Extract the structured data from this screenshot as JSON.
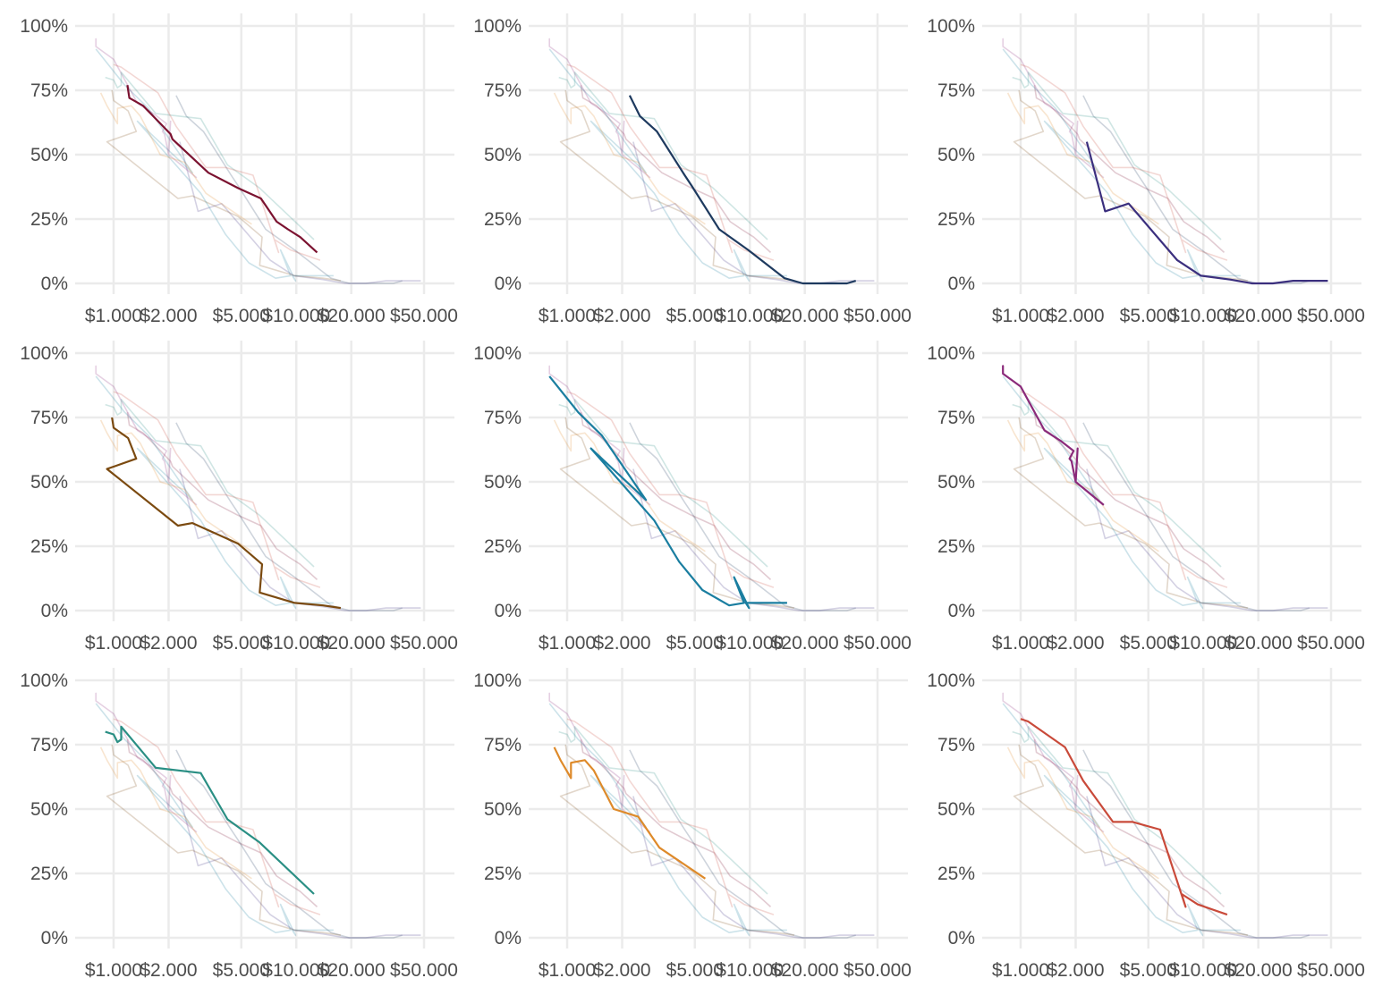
{
  "chart_data": {
    "type": "line",
    "layout": "small-multiples",
    "rows": 3,
    "cols": 3,
    "x_scale": "log",
    "xlim": [
      750,
      60000
    ],
    "ylim": [
      0,
      1
    ],
    "grid": true,
    "legend": "none",
    "x_ticks": [
      {
        "value": 1000,
        "label": "$1.000"
      },
      {
        "value": 2000,
        "label": "$2.000"
      },
      {
        "value": 5000,
        "label": "$5.000"
      },
      {
        "value": 10000,
        "label": "$10.000"
      },
      {
        "value": 20000,
        "label": "$20.000"
      },
      {
        "value": 50000,
        "label": "$50.000"
      }
    ],
    "y_ticks": [
      {
        "value": 0,
        "label": "0%"
      },
      {
        "value": 0.25,
        "label": "25%"
      },
      {
        "value": 0.5,
        "label": "50%"
      },
      {
        "value": 0.75,
        "label": "75%"
      },
      {
        "value": 1,
        "label": "100%"
      }
    ],
    "background_series_opacity": 0.22,
    "series": [
      {
        "color": "#7b1230",
        "points": [
          [
            1190,
            0.77
          ],
          [
            1220,
            0.72
          ],
          [
            1450,
            0.69
          ],
          [
            2050,
            0.58
          ],
          [
            2100,
            0.56
          ],
          [
            3300,
            0.43
          ],
          [
            4800,
            0.37
          ],
          [
            6400,
            0.33
          ],
          [
            7800,
            0.24
          ],
          [
            9000,
            0.21
          ],
          [
            10500,
            0.18
          ],
          [
            13000,
            0.12
          ]
        ]
      },
      {
        "color": "#1e3a5f",
        "points": [
          [
            2200,
            0.73
          ],
          [
            2500,
            0.65
          ],
          [
            3100,
            0.59
          ],
          [
            4400,
            0.42
          ],
          [
            4800,
            0.38
          ],
          [
            6800,
            0.21
          ],
          [
            9800,
            0.13
          ],
          [
            15500,
            0.02
          ],
          [
            19500,
            0.0
          ],
          [
            34000,
            0.0
          ],
          [
            38000,
            0.01
          ]
        ]
      },
      {
        "color": "#3b2f7e",
        "points": [
          [
            2300,
            0.55
          ],
          [
            2900,
            0.28
          ],
          [
            3900,
            0.31
          ],
          [
            7200,
            0.09
          ],
          [
            9700,
            0.03
          ],
          [
            14000,
            0.015
          ],
          [
            18500,
            0.0
          ],
          [
            24000,
            0.0
          ],
          [
            31000,
            0.01
          ],
          [
            48000,
            0.01
          ]
        ]
      },
      {
        "color": "#7b4a10",
        "points": [
          [
            980,
            0.75
          ],
          [
            1000,
            0.71
          ],
          [
            1200,
            0.67
          ],
          [
            1330,
            0.59
          ],
          [
            920,
            0.55
          ],
          [
            2250,
            0.33
          ],
          [
            2700,
            0.34
          ],
          [
            4800,
            0.26
          ],
          [
            6500,
            0.18
          ],
          [
            6300,
            0.07
          ],
          [
            9800,
            0.03
          ],
          [
            14000,
            0.02
          ],
          [
            17500,
            0.01
          ]
        ]
      },
      {
        "color": "#1a7ea0",
        "points": [
          [
            800,
            0.91
          ],
          [
            1150,
            0.77
          ],
          [
            1550,
            0.68
          ],
          [
            2700,
            0.43
          ],
          [
            1350,
            0.63
          ],
          [
            3000,
            0.35
          ],
          [
            4100,
            0.19
          ],
          [
            5500,
            0.08
          ],
          [
            7700,
            0.02
          ],
          [
            9300,
            0.03
          ],
          [
            8200,
            0.13
          ],
          [
            9900,
            0.01
          ],
          [
            9500,
            0.03
          ],
          [
            16000,
            0.03
          ]
        ]
      },
      {
        "color": "#8a2a7a",
        "points": [
          [
            800,
            0.93
          ],
          [
            800,
            0.95
          ],
          [
            800,
            0.92
          ],
          [
            1000,
            0.87
          ],
          [
            1350,
            0.7
          ],
          [
            1650,
            0.66
          ],
          [
            1950,
            0.62
          ],
          [
            1850,
            0.59
          ],
          [
            1900,
            0.58
          ],
          [
            2000,
            0.5
          ],
          [
            2050,
            0.63
          ],
          [
            2000,
            0.5
          ],
          [
            2850,
            0.41
          ]
        ]
      },
      {
        "color": "#2a8f84",
        "points": [
          [
            900,
            0.8
          ],
          [
            1000,
            0.79
          ],
          [
            1050,
            0.76
          ],
          [
            1100,
            0.77
          ],
          [
            1100,
            0.82
          ],
          [
            1700,
            0.66
          ],
          [
            3000,
            0.64
          ],
          [
            4200,
            0.46
          ],
          [
            6300,
            0.37
          ],
          [
            12500,
            0.17
          ]
        ]
      },
      {
        "color": "#de8a2a",
        "points": [
          [
            850,
            0.74
          ],
          [
            920,
            0.69
          ],
          [
            1050,
            0.62
          ],
          [
            1050,
            0.68
          ],
          [
            1250,
            0.69
          ],
          [
            1400,
            0.65
          ],
          [
            1800,
            0.5
          ],
          [
            2450,
            0.47
          ],
          [
            3200,
            0.35
          ],
          [
            5700,
            0.23
          ]
        ]
      },
      {
        "color": "#c94a3a",
        "points": [
          [
            1000,
            0.85
          ],
          [
            1100,
            0.84
          ],
          [
            1750,
            0.74
          ],
          [
            2200,
            0.61
          ],
          [
            3200,
            0.45
          ],
          [
            4100,
            0.45
          ],
          [
            5800,
            0.42
          ],
          [
            7500,
            0.18
          ],
          [
            8000,
            0.12
          ],
          [
            7600,
            0.17
          ],
          [
            9300,
            0.13
          ],
          [
            13500,
            0.09
          ]
        ]
      }
    ]
  }
}
